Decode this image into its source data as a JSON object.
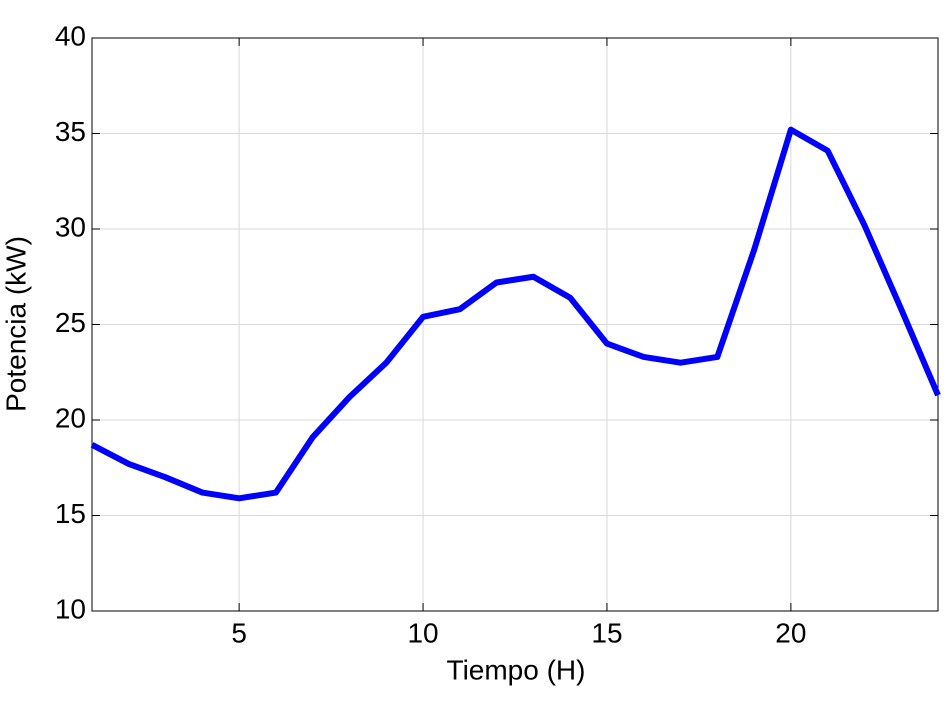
{
  "chart_data": {
    "type": "line",
    "xlabel": "Tiempo (H)",
    "ylabel": "Potencia (kW)",
    "x": [
      1,
      2,
      3,
      4,
      5,
      6,
      7,
      8,
      9,
      10,
      11,
      12,
      13,
      14,
      15,
      16,
      17,
      18,
      19,
      20,
      21,
      22,
      23,
      24
    ],
    "series": [
      {
        "color": "#0000ff",
        "values": [
          18.7,
          17.7,
          17.0,
          16.2,
          15.9,
          16.2,
          19.1,
          21.2,
          23.0,
          25.4,
          25.8,
          27.2,
          27.5,
          26.4,
          24.0,
          23.3,
          23.0,
          23.3,
          28.9,
          35.2,
          34.1,
          30.2,
          25.8,
          21.3
        ]
      }
    ],
    "xlim": [
      1,
      24
    ],
    "xticks": [
      5,
      10,
      15,
      20
    ],
    "ylim": [
      10,
      40
    ],
    "yticks": [
      10,
      15,
      20,
      25,
      30,
      35,
      40
    ],
    "grid": true
  }
}
